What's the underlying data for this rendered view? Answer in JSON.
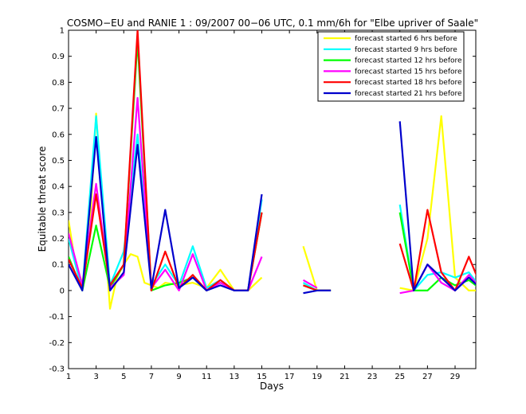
{
  "chart_data": {
    "type": "line",
    "title": "COSMO−EU and RANIE 1 : 09/2007 00−06 UTC, 0.1 mm/6h for \"Elbe upriver of Saale\"",
    "xlabel": "Days",
    "ylabel": "Equitable threat score",
    "xlim": [
      1,
      30.5
    ],
    "ylim": [
      -0.3,
      1
    ],
    "xticks": [
      1,
      3,
      5,
      7,
      9,
      11,
      13,
      15,
      17,
      19,
      21,
      23,
      25,
      27,
      29
    ],
    "yticks": [
      -0.3,
      -0.2,
      -0.1,
      0,
      0.1,
      0.2,
      0.3,
      0.4,
      0.5,
      0.6,
      0.7,
      0.8,
      0.9,
      1
    ],
    "legend_position": "top-right",
    "grid": false,
    "series": [
      {
        "name": "forecast started 6 hrs before",
        "color": "#ffff00",
        "points": [
          [
            1,
            0.27
          ],
          [
            1.5,
            0.1
          ],
          [
            2,
            0.03
          ],
          [
            2.5,
            0.2
          ],
          [
            3,
            0.68
          ],
          [
            3.5,
            0.3
          ],
          [
            4,
            -0.07
          ],
          [
            4.5,
            0.05
          ],
          [
            5,
            0.1
          ],
          [
            5.5,
            0.14
          ],
          [
            6,
            0.13
          ],
          [
            6.5,
            0.03
          ],
          [
            7,
            0.02
          ],
          [
            7.5,
            0.01
          ],
          [
            8,
            0.03
          ],
          [
            9,
            0.02
          ],
          [
            10,
            0.03
          ],
          [
            11,
            0.01
          ],
          [
            12,
            0.08
          ],
          [
            13,
            0.0
          ],
          [
            14,
            0.0
          ],
          [
            15,
            0.05
          ],
          null,
          [
            18,
            0.17
          ],
          [
            19,
            0.0
          ],
          null,
          [
            25,
            0.01
          ],
          [
            26,
            0.0
          ],
          [
            27,
            0.2
          ],
          [
            28,
            0.67
          ],
          [
            29,
            0.05
          ],
          [
            30,
            0.0
          ],
          [
            31,
            0.0
          ]
        ]
      },
      {
        "name": "forecast started 9 hrs before",
        "color": "#00ffff",
        "points": [
          [
            1,
            0.2
          ],
          [
            2,
            0.0
          ],
          [
            3,
            0.67
          ],
          [
            4,
            0.02
          ],
          [
            5,
            0.15
          ],
          [
            6,
            0.6
          ],
          [
            7,
            0.02
          ],
          [
            8,
            0.1
          ],
          [
            9,
            0.02
          ],
          [
            10,
            0.17
          ],
          [
            11,
            0.01
          ],
          [
            12,
            0.04
          ],
          [
            13,
            0.0
          ],
          [
            14,
            0.0
          ],
          [
            15,
            0.35
          ],
          null,
          [
            18,
            0.03
          ],
          [
            19,
            0.0
          ],
          [
            20,
            0.0
          ],
          null,
          [
            25,
            0.33
          ],
          [
            26,
            0.0
          ],
          [
            27,
            0.06
          ],
          [
            28,
            0.07
          ],
          [
            29,
            0.05
          ],
          [
            30,
            0.07
          ],
          [
            31,
            0.0
          ]
        ]
      },
      {
        "name": "forecast started 12 hrs before",
        "color": "#00ff00",
        "points": [
          [
            1,
            0.13
          ],
          [
            2,
            0.0
          ],
          [
            3,
            0.25
          ],
          [
            4,
            0.01
          ],
          [
            5,
            0.1
          ],
          [
            6,
            0.96
          ],
          [
            7,
            0.0
          ],
          [
            8,
            0.02
          ],
          [
            9,
            0.03
          ],
          [
            10,
            0.05
          ],
          [
            11,
            0.0
          ],
          [
            12,
            0.03
          ],
          [
            13,
            0.0
          ],
          [
            14,
            0.0
          ],
          [
            15,
            0.3
          ],
          null,
          [
            18,
            0.02
          ],
          [
            19,
            0.0
          ],
          [
            20,
            0.0
          ],
          null,
          [
            25,
            0.3
          ],
          [
            26,
            0.0
          ],
          [
            27,
            0.0
          ],
          [
            28,
            0.05
          ],
          [
            29,
            0.02
          ],
          [
            30,
            0.04
          ],
          [
            31,
            0.0
          ]
        ]
      },
      {
        "name": "forecast started 15 hrs before",
        "color": "#ff00ff",
        "points": [
          [
            1,
            0.22
          ],
          [
            2,
            0.02
          ],
          [
            3,
            0.41
          ],
          [
            4,
            0.01
          ],
          [
            5,
            0.06
          ],
          [
            6,
            0.74
          ],
          [
            7,
            0.01
          ],
          [
            8,
            0.08
          ],
          [
            9,
            0.0
          ],
          [
            10,
            0.14
          ],
          [
            11,
            0.0
          ],
          [
            12,
            0.03
          ],
          [
            13,
            0.0
          ],
          [
            14,
            0.0
          ],
          [
            15,
            0.13
          ],
          null,
          [
            18,
            0.04
          ],
          [
            19,
            0.01
          ],
          null,
          [
            25,
            -0.01
          ],
          [
            26,
            0.0
          ],
          [
            27,
            0.1
          ],
          [
            28,
            0.03
          ],
          [
            29,
            0.0
          ],
          [
            30,
            0.06
          ],
          [
            31,
            0.0
          ]
        ]
      },
      {
        "name": "forecast started 18 hrs before",
        "color": "#ff0000",
        "points": [
          [
            1,
            0.12
          ],
          [
            2,
            0.01
          ],
          [
            3,
            0.37
          ],
          [
            4,
            0.02
          ],
          [
            5,
            0.1
          ],
          [
            6,
            1.0
          ],
          [
            7,
            0.0
          ],
          [
            8,
            0.15
          ],
          [
            9,
            0.01
          ],
          [
            10,
            0.06
          ],
          [
            11,
            0.0
          ],
          [
            12,
            0.04
          ],
          [
            13,
            0.0
          ],
          [
            14,
            0.0
          ],
          [
            15,
            0.3
          ],
          null,
          [
            18,
            0.02
          ],
          [
            19,
            0.0
          ],
          [
            20,
            0.0
          ],
          null,
          [
            25,
            0.18
          ],
          [
            26,
            0.0
          ],
          [
            27,
            0.31
          ],
          [
            28,
            0.07
          ],
          [
            29,
            0.0
          ],
          [
            30,
            0.13
          ],
          [
            31,
            0.0
          ]
        ]
      },
      {
        "name": "forecast started 21 hrs before",
        "color": "#0000cc",
        "points": [
          [
            1,
            0.1
          ],
          [
            2,
            0.0
          ],
          [
            3,
            0.59
          ],
          [
            4,
            0.0
          ],
          [
            5,
            0.07
          ],
          [
            6,
            0.56
          ],
          [
            7,
            0.01
          ],
          [
            8,
            0.31
          ],
          [
            9,
            0.01
          ],
          [
            10,
            0.05
          ],
          [
            11,
            0.0
          ],
          [
            12,
            0.02
          ],
          [
            13,
            0.0
          ],
          [
            14,
            0.0
          ],
          [
            15,
            0.37
          ],
          null,
          [
            18,
            -0.01
          ],
          [
            19,
            0.0
          ],
          [
            20,
            0.0
          ],
          null,
          [
            25,
            0.65
          ],
          [
            26,
            0.0
          ],
          [
            27,
            0.1
          ],
          [
            28,
            0.05
          ],
          [
            29,
            0.0
          ],
          [
            30,
            0.05
          ],
          [
            31,
            0.0
          ]
        ]
      }
    ]
  }
}
